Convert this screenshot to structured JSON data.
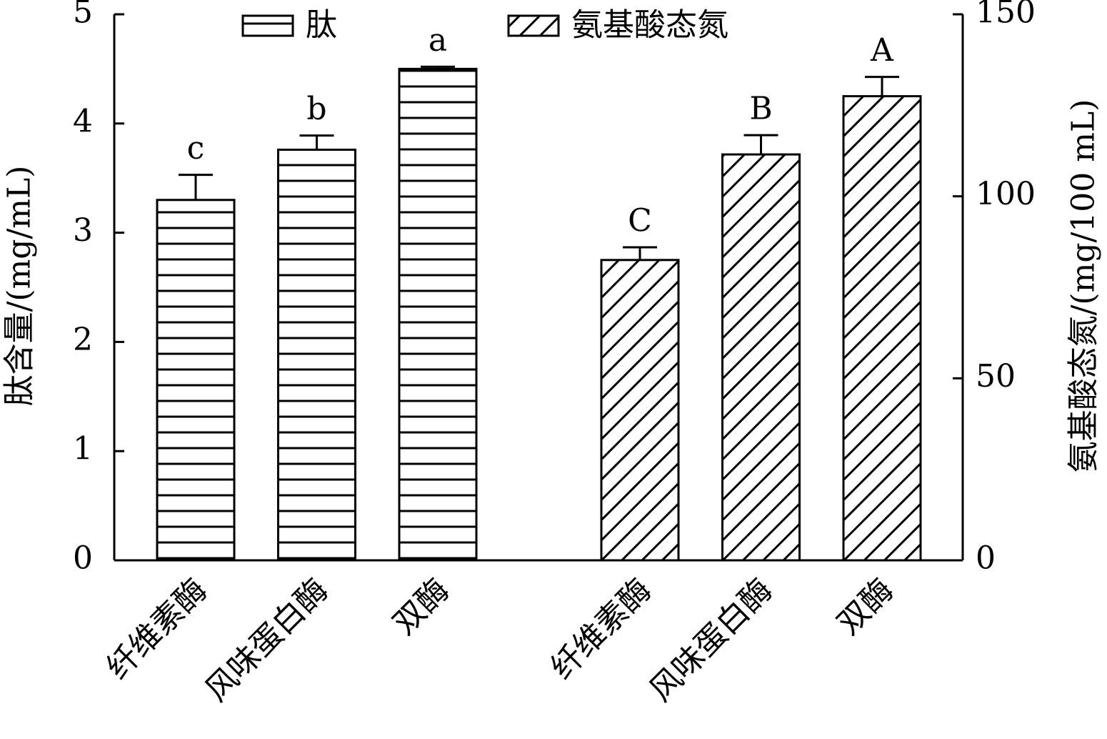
{
  "chart_data": {
    "type": "bar",
    "categories": [
      "纤维素酶",
      "风味蛋白酶",
      "双酶",
      "纤维素酶",
      "风味蛋白酶",
      "双酶"
    ],
    "series": [
      {
        "name": "肽",
        "color": "#000000",
        "hatch": "horizontal",
        "axis": "y",
        "values": [
          3.3,
          3.76,
          4.5,
          null,
          null,
          null
        ],
        "errors": [
          0.23,
          0.13,
          0.02,
          null,
          null,
          null
        ],
        "letters": [
          "c",
          "b",
          "a",
          null,
          null,
          null
        ]
      },
      {
        "name": "氨基酸态氮",
        "color": "#000000",
        "hatch": "diagonal",
        "axis": "y2",
        "values": [
          null,
          null,
          null,
          82.5,
          111.5,
          127.5
        ],
        "errors": [
          null,
          null,
          null,
          3.5,
          5.3,
          5.3
        ],
        "letters": [
          null,
          null,
          null,
          "C",
          "B",
          "A"
        ]
      }
    ],
    "ylabel": "肽含量/(mg/mL)",
    "y2label": "氨基酸态氮/(mg/100 mL)",
    "ylim": [
      0,
      5
    ],
    "yticks": [
      0,
      1,
      2,
      3,
      4,
      5
    ],
    "y2lim": [
      0,
      150
    ],
    "y2ticks": [
      0,
      50,
      100,
      150
    ],
    "legend": "top",
    "grid": false
  }
}
